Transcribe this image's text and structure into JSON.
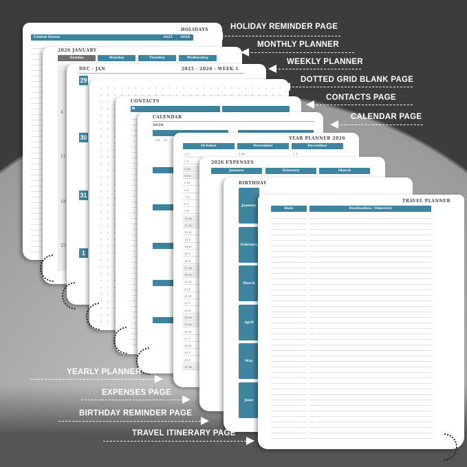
{
  "colors": {
    "accent": "#3f849f",
    "background_dark": "#3c3c3c"
  },
  "labels_right": [
    "HOLIDAY REMINDER PAGE",
    "MONTHLY PLANNER",
    "WEEKLY PLANNER",
    "DOTTED GRID BLANK PAGE",
    "CONTACTS PAGE",
    "CALENDAR PAGE"
  ],
  "labels_left": [
    "YEARLY PLANNER",
    "EXPENSES PAGE",
    "BIRTHDAY REMINDER PAGE",
    "TRAVEL ITINERARY PAGE"
  ],
  "holiday": {
    "title": "HOLIDAYS",
    "country": "United States",
    "years": [
      "2025",
      "2026"
    ]
  },
  "monthly": {
    "title": "2026 JANUARY",
    "days": [
      "Sunday",
      "Monday",
      "Tuesday",
      "Wednesday"
    ],
    "dates": [
      "4",
      "11",
      "18",
      "25"
    ]
  },
  "weekly": {
    "range": "DEC · JAN",
    "title": "2025 · 2026 · WEEK 1",
    "dates": [
      "29",
      "30",
      "31",
      "1"
    ]
  },
  "contacts": {
    "title": "CONTACTS",
    "icon": "envelope-icon"
  },
  "calendar": {
    "title": "CALENDAR",
    "year": "2026",
    "col_headers": [
      "WK",
      "Su"
    ]
  },
  "yearly": {
    "title": "YEAR PLANNER 2026",
    "months": [
      "October",
      "November",
      "December"
    ],
    "rows": [
      "1 T",
      "2 F",
      "3 Sa",
      "4 Su",
      "5 M",
      "6 T",
      "7 W",
      "8 T",
      "9 F",
      "10 Sa",
      "11 Su",
      "12 M",
      "13 T",
      "14 W",
      "15 T",
      "16 F",
      "17 Sa",
      "18 Su",
      "19 M",
      "20 T",
      "21 W",
      "22 T",
      "23 F",
      "24 Sa",
      "25 Su",
      "26 M",
      "27 T",
      "28 W",
      "29 T",
      "30 F",
      "31 Sa"
    ],
    "nov_first": "1 Su",
    "dec_first": "1 T"
  },
  "expenses": {
    "title": "2026 EXPENSES",
    "months": [
      "January",
      "February",
      "March"
    ]
  },
  "birthday": {
    "title": "BIRTHDAY",
    "months": [
      "January",
      "February",
      "March",
      "April",
      "May",
      "June"
    ]
  },
  "travel": {
    "title": "TRAVEL PLANNER",
    "columns": [
      "Date",
      "Destination / Itinerary"
    ]
  }
}
